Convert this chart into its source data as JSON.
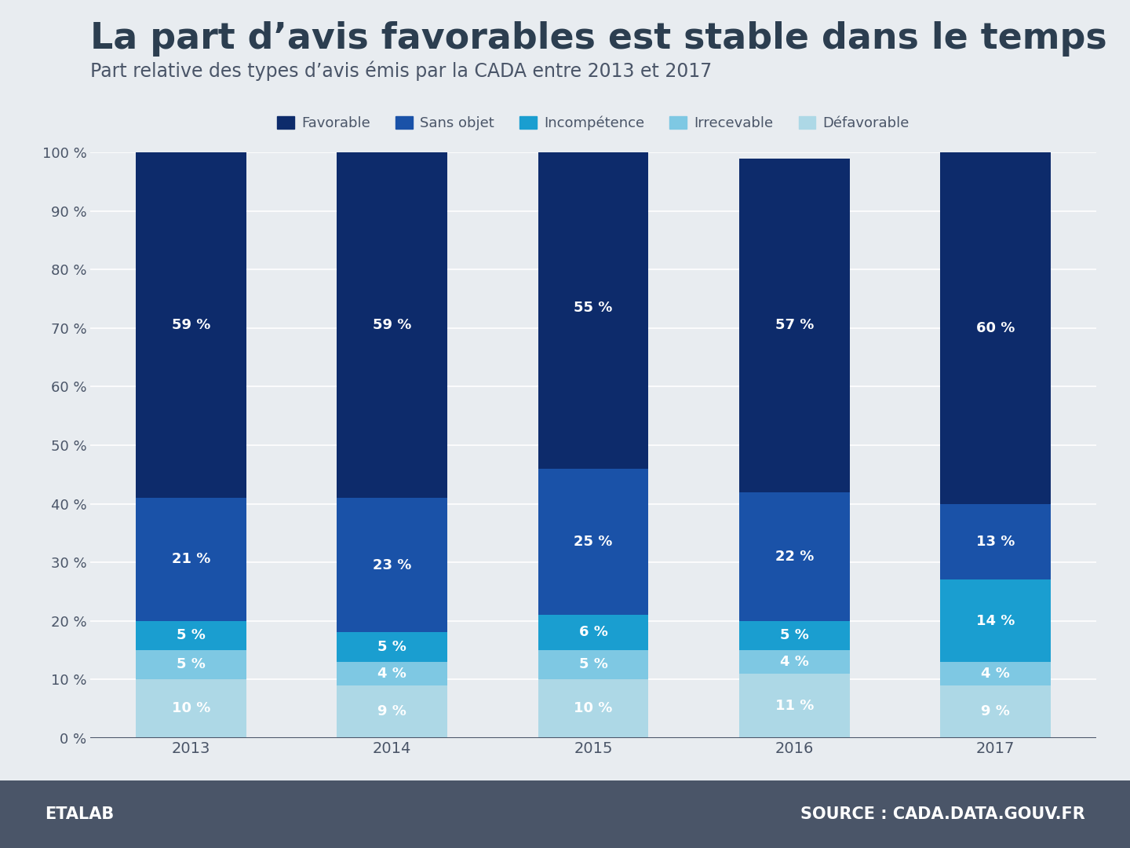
{
  "title": "La part d’avis favorables est stable dans le temps",
  "subtitle": "Part relative des types d’avis émis par la CADA entre 2013 et 2017",
  "years": [
    "2013",
    "2014",
    "2015",
    "2016",
    "2017"
  ],
  "categories": [
    "Défavorable",
    "Irrecevable",
    "Incompétence",
    "Sans objet",
    "Favorable"
  ],
  "legend_labels": [
    "Favorable",
    "Sans objet",
    "Incompétence",
    "Irrecevable",
    "Défavorable"
  ],
  "legend_colors": [
    "#0d2b6b",
    "#1a52a8",
    "#1a9ed0",
    "#7ec8e3",
    "#add8e6"
  ],
  "colors": [
    "#add8e6",
    "#7ec8e3",
    "#1a9ed0",
    "#1a52a8",
    "#0d2b6b"
  ],
  "data": {
    "Défavorable": [
      10,
      9,
      10,
      11,
      9
    ],
    "Irrecevable": [
      5,
      4,
      5,
      4,
      4
    ],
    "Incompétence": [
      5,
      5,
      6,
      5,
      14
    ],
    "Sans objet": [
      21,
      23,
      25,
      22,
      13
    ],
    "Favorable": [
      59,
      59,
      55,
      57,
      60
    ]
  },
  "background_color": "#e8ecf0",
  "bar_width": 0.55,
  "ylim": [
    0,
    100
  ],
  "yticks": [
    0,
    10,
    20,
    30,
    40,
    50,
    60,
    70,
    80,
    90,
    100
  ],
  "footer_bg": "#4a5568",
  "footer_left": "ETALAB",
  "footer_right": "SOURCE : CADA.DATA.GOUV.FR",
  "title_color": "#2c3e50",
  "subtitle_color": "#4a5568",
  "axis_color": "#4a5568",
  "grid_color": "#ffffff",
  "label_color_white": "#ffffff"
}
